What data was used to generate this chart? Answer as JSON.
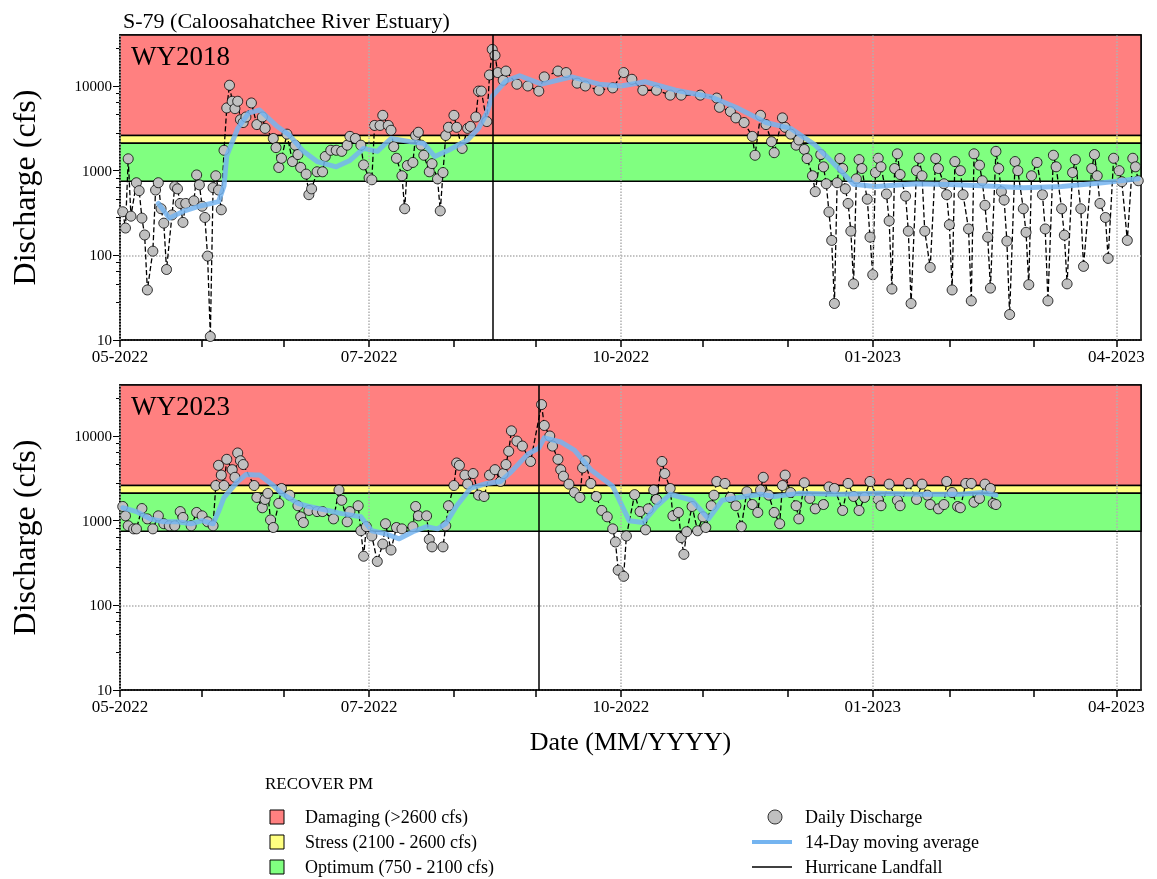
{
  "chart_data": [
    {
      "type": "line",
      "title": "S-79 (Caloosahatchee River Estuary)",
      "subtitle": "WY2018",
      "ylabel": "Discharge (cfs)",
      "log": true,
      "grid": true,
      "xlim": [
        "2022-05-01",
        "2023-05-09"
      ],
      "ylim": [
        10,
        40000
      ],
      "yticks": [
        10,
        100,
        1000,
        10000
      ],
      "xticks": [
        {
          "value": "2022-05-01",
          "label": "05-2022"
        },
        {
          "value": "2022-05-31",
          "label": null
        },
        {
          "value": "2022-06-30",
          "label": null
        },
        {
          "value": "2022-07-31",
          "label": "07-2022"
        },
        {
          "value": "2022-08-31",
          "label": null
        },
        {
          "value": "2022-09-30",
          "label": null
        },
        {
          "value": "2022-10-31",
          "label": "10-2022"
        },
        {
          "value": "2022-11-30",
          "label": null
        },
        {
          "value": "2022-12-31",
          "label": null
        },
        {
          "value": "2023-01-31",
          "label": "01-2023"
        },
        {
          "value": "2023-02-28",
          "label": null
        },
        {
          "value": "2023-03-31",
          "label": null
        },
        {
          "value": "2023-04-30",
          "label": "04-2023"
        }
      ],
      "bands": [
        {
          "axis": "y",
          "from": 2600,
          "to": 40000,
          "color": "#ff8080"
        },
        {
          "axis": "y",
          "from": 2100,
          "to": 2600,
          "color": "#ffff80"
        },
        {
          "axis": "y",
          "from": 750,
          "to": 2100,
          "color": "#80ff80"
        }
      ],
      "ref_lines": [
        {
          "axis": "x",
          "value": "2022-09-14",
          "color": "#000000"
        }
      ],
      "series": [
        {
          "color": "#c0c0c0",
          "marker": "circle",
          "line_style": "dashed",
          "x": [
            "2022-05-02",
            "2022-05-03",
            "2022-05-04",
            "2022-05-05",
            "2022-05-07",
            "2022-05-08",
            "2022-05-09",
            "2022-05-10",
            "2022-05-11",
            "2022-05-13",
            "2022-05-14",
            "2022-05-15",
            "2022-05-16",
            "2022-05-17",
            "2022-05-18",
            "2022-05-20",
            "2022-05-21",
            "2022-05-22",
            "2022-05-23",
            "2022-05-24",
            "2022-05-25",
            "2022-05-28",
            "2022-05-29",
            "2022-05-30",
            "2022-05-31",
            "2022-06-01",
            "2022-06-02",
            "2022-06-03",
            "2022-06-04",
            "2022-06-05",
            "2022-06-06",
            "2022-06-07",
            "2022-06-08",
            "2022-06-09",
            "2022-06-10",
            "2022-06-11",
            "2022-06-12",
            "2022-06-13",
            "2022-06-14",
            "2022-06-15",
            "2022-06-16",
            "2022-06-18",
            "2022-06-20",
            "2022-06-22",
            "2022-06-23",
            "2022-06-26",
            "2022-06-27",
            "2022-06-28",
            "2022-06-29",
            "2022-07-01",
            "2022-07-03",
            "2022-07-04",
            "2022-07-05",
            "2022-07-06",
            "2022-07-08",
            "2022-07-09",
            "2022-07-10",
            "2022-07-12",
            "2022-07-14",
            "2022-07-15",
            "2022-07-17",
            "2022-07-19",
            "2022-07-21",
            "2022-07-23",
            "2022-07-24",
            "2022-07-26",
            "2022-07-28",
            "2022-07-29",
            "2022-07-31",
            "2022-08-01",
            "2022-08-02",
            "2022-08-04",
            "2022-08-05",
            "2022-08-07",
            "2022-08-08",
            "2022-08-09",
            "2022-08-10",
            "2022-08-12",
            "2022-08-13",
            "2022-08-14",
            "2022-08-16",
            "2022-08-17",
            "2022-08-18",
            "2022-08-19",
            "2022-08-20",
            "2022-08-22",
            "2022-08-23",
            "2022-08-25",
            "2022-08-26",
            "2022-08-27",
            "2022-08-28",
            "2022-08-29",
            "2022-08-31",
            "2022-09-01",
            "2022-09-03",
            "2022-09-05",
            "2022-09-06",
            "2022-09-08",
            "2022-09-09",
            "2022-09-10",
            "2022-09-12",
            "2022-09-13",
            "2022-09-14",
            "2022-09-15",
            "2022-09-16",
            "2022-09-18",
            "2022-09-19",
            "2022-09-23",
            "2022-09-27",
            "2022-10-01",
            "2022-10-03",
            "2022-10-08",
            "2022-10-11",
            "2022-10-15",
            "2022-10-18",
            "2022-10-23",
            "2022-10-28",
            "2022-11-01",
            "2022-11-04",
            "2022-11-08",
            "2022-11-13",
            "2022-11-18",
            "2022-11-22",
            "2022-11-29",
            "2022-12-05",
            "2022-12-06",
            "2022-12-10",
            "2022-12-12",
            "2022-12-15",
            "2022-12-18",
            "2022-12-19",
            "2022-12-21",
            "2022-12-23",
            "2022-12-25",
            "2022-12-26",
            "2022-12-29",
            "2022-12-30",
            "2023-01-01",
            "2023-01-03",
            "2023-01-04",
            "2023-01-06",
            "2023-01-07",
            "2023-01-09",
            "2023-01-10",
            "2023-01-12",
            "2023-01-13",
            "2023-01-14",
            "2023-01-15",
            "2023-01-16",
            "2023-01-17",
            "2023-01-18",
            "2023-01-19",
            "2023-01-20",
            "2023-01-21",
            "2023-01-22",
            "2023-01-23",
            "2023-01-24",
            "2023-01-25",
            "2023-01-26",
            "2023-01-27",
            "2023-01-29",
            "2023-01-30",
            "2023-01-31",
            "2023-02-01",
            "2023-02-02",
            "2023-02-03",
            "2023-02-05",
            "2023-02-06",
            "2023-02-07",
            "2023-02-08",
            "2023-02-09",
            "2023-02-10",
            "2023-02-12",
            "2023-02-13",
            "2023-02-14",
            "2023-02-16",
            "2023-02-17",
            "2023-02-18",
            "2023-02-19",
            "2023-02-21",
            "2023-02-23",
            "2023-02-24",
            "2023-02-26",
            "2023-02-27",
            "2023-02-28",
            "2023-03-01",
            "2023-03-02",
            "2023-03-04",
            "2023-03-05",
            "2023-03-07",
            "2023-03-08",
            "2023-03-09",
            "2023-03-11",
            "2023-03-12",
            "2023-03-13",
            "2023-03-14",
            "2023-03-15",
            "2023-03-17",
            "2023-03-18",
            "2023-03-19",
            "2023-03-20",
            "2023-03-21",
            "2023-03-22",
            "2023-03-24",
            "2023-03-25",
            "2023-03-27",
            "2023-03-28",
            "2023-03-29",
            "2023-03-30",
            "2023-04-01",
            "2023-04-03",
            "2023-04-04",
            "2023-04-05",
            "2023-04-07",
            "2023-04-08",
            "2023-04-10",
            "2023-04-11",
            "2023-04-12",
            "2023-04-14",
            "2023-04-15",
            "2023-04-17",
            "2023-04-18",
            "2023-04-21",
            "2023-04-22",
            "2023-04-23",
            "2023-04-24",
            "2023-04-26",
            "2023-04-27",
            "2023-04-29",
            "2023-05-01",
            "2023-05-02",
            "2023-05-04",
            "2023-05-06",
            "2023-05-07",
            "2023-05-08"
          ],
          "values": [
            327,
            210,
            1380,
            290,
            720,
            580,
            275,
            174,
            39,
            112,
            590,
            720,
            355,
            240,
            68,
            300,
            650,
            610,
            410,
            245,
            410,
            440,
            890,
            680,
            380,
            280,
            98,
            11,
            630,
            870,
            590,
            345,
            1740,
            5500,
            10200,
            6600,
            5400,
            6600,
            4000,
            3700,
            4300,
            6300,
            3500,
            4300,
            3160,
            2400,
            1870,
            1090,
            1400,
            2700,
            1280,
            2000,
            1550,
            1090,
            910,
            520,
            610,
            970,
            970,
            1470,
            1740,
            1740,
            1690,
            2000,
            2540,
            2400,
            2000,
            1170,
            820,
            780,
            3420,
            3420,
            4500,
            3420,
            3000,
            1920,
            1400,
            870,
            355,
            1150,
            1250,
            2600,
            2840,
            2000,
            1520,
            970,
            1210,
            800,
            335,
            950,
            2600,
            3250,
            4500,
            3250,
            1830,
            3160,
            3330,
            4300,
            8700,
            8700,
            3800,
            13500,
            27000,
            23000,
            14400,
            11700,
            15000,
            10500,
            10000,
            8700,
            12800,
            15000,
            14400,
            10800,
            10000,
            8900,
            9500,
            14400,
            12000,
            8900,
            8900,
            7800,
            7800,
            7800,
            7200,
            5600,
            5000,
            4200,
            3700,
            2540,
            1520,
            4500,
            3500,
            2200,
            1630,
            4200,
            3250,
            2700,
            2000,
            2300,
            1780,
            1390,
            870,
            565,
            1550,
            1110,
            700,
            325,
            150,
            27,
            720,
            1390,
            1060,
            610,
            410,
            193,
            46,
            800,
            1350,
            1060,
            460,
            164,
            59,
            950,
            1400,
            1110,
            530,
            255,
            40,
            1060,
            1580,
            900,
            500,
            193,
            27,
            1000,
            1400,
            870,
            193,
            72,
            1390,
            1060,
            700,
            520,
            230,
            39,
            1280,
            1000,
            520,
            205,
            29,
            1580,
            1160,
            760,
            390,
            164,
            41,
            1690,
            1060,
            565,
            450,
            147,
            20,
            1280,
            1000,
            355,
            187,
            45,
            870,
            1250,
            520,
            205,
            29,
            1520,
            1110,
            355,
            173,
            46,
            950,
            1350,
            355,
            74,
            1060,
            1550,
            870,
            410,
            280,
            92,
            1400,
            1000,
            740,
            150,
            1400,
            1110,
            760
          ]
        },
        {
          "color": "#74b4f0",
          "marker": "none",
          "line_style": "solid",
          "x": [
            "2022-05-15",
            "2022-05-19",
            "2022-05-24",
            "2022-05-30",
            "2022-06-06",
            "2022-06-08",
            "2022-06-09",
            "2022-06-13",
            "2022-06-17",
            "2022-06-21",
            "2022-06-27",
            "2022-07-02",
            "2022-07-07",
            "2022-07-12",
            "2022-07-19",
            "2022-07-24",
            "2022-07-29",
            "2022-08-03",
            "2022-08-08",
            "2022-08-15",
            "2022-08-20",
            "2022-08-24",
            "2022-08-29",
            "2022-09-05",
            "2022-09-09",
            "2022-09-12",
            "2022-09-14",
            "2022-09-19",
            "2022-09-24",
            "2022-10-02",
            "2022-10-13",
            "2022-10-23",
            "2022-10-31",
            "2022-11-09",
            "2022-11-20",
            "2022-12-03",
            "2022-12-12",
            "2022-12-23",
            "2023-01-01",
            "2023-01-10",
            "2023-01-16",
            "2023-01-24",
            "2023-02-01",
            "2023-02-16",
            "2023-03-03",
            "2023-03-18",
            "2023-03-27",
            "2023-04-10",
            "2023-04-25",
            "2023-05-08"
          ],
          "values": [
            410,
            275,
            330,
            380,
            430,
            660,
            1500,
            3160,
            4800,
            5200,
            3420,
            2600,
            1690,
            1280,
            1110,
            1320,
            1830,
            1690,
            2400,
            2200,
            2100,
            1470,
            1740,
            2300,
            3160,
            4800,
            7600,
            11500,
            13200,
            10500,
            12800,
            10500,
            10000,
            11200,
            8900,
            7400,
            5600,
            3700,
            3160,
            2000,
            1280,
            690,
            650,
            700,
            680,
            650,
            630,
            650,
            720,
            800
          ]
        }
      ]
    },
    {
      "type": "line",
      "subtitle": "WY2023",
      "xlabel": "Date (MM/YYYY)",
      "ylabel": "Discharge (cfs)",
      "log": true,
      "grid": true,
      "legend": "bottom",
      "legend_title": "RECOVER PM",
      "xlim": [
        "2022-05-01",
        "2023-05-09"
      ],
      "ylim": [
        10,
        40000
      ],
      "yticks": [
        10,
        100,
        1000,
        10000
      ],
      "xticks": [
        {
          "value": "2022-05-01",
          "label": "05-2022"
        },
        {
          "value": "2022-05-31",
          "label": null
        },
        {
          "value": "2022-06-30",
          "label": null
        },
        {
          "value": "2022-07-31",
          "label": "07-2022"
        },
        {
          "value": "2022-08-31",
          "label": null
        },
        {
          "value": "2022-09-30",
          "label": null
        },
        {
          "value": "2022-10-31",
          "label": "10-2022"
        },
        {
          "value": "2022-11-30",
          "label": null
        },
        {
          "value": "2022-12-31",
          "label": null
        },
        {
          "value": "2023-01-31",
          "label": "01-2023"
        },
        {
          "value": "2023-02-28",
          "label": null
        },
        {
          "value": "2023-03-31",
          "label": null
        },
        {
          "value": "2023-04-30",
          "label": "04-2023"
        }
      ],
      "bands": [
        {
          "axis": "y",
          "from": 2600,
          "to": 40000,
          "color": "#ff8080",
          "label": "Damaging (>2600 cfs)"
        },
        {
          "axis": "y",
          "from": 2100,
          "to": 2600,
          "color": "#ffff80",
          "label": "Stress (2100 - 2600 cfs)"
        },
        {
          "axis": "y",
          "from": 750,
          "to": 2100,
          "color": "#80ff80",
          "label": "Optimum (750 - 2100 cfs)"
        }
      ],
      "ref_lines": [
        {
          "axis": "x",
          "value": "2022-10-01",
          "color": "#000000",
          "label": "Hurricane Landfall"
        }
      ],
      "series": [
        {
          "name": "Daily Discharge",
          "color": "#c0c0c0",
          "marker": "circle",
          "line_style": "dashed",
          "x": [
            "2022-05-02",
            "2022-05-03",
            "2022-05-04",
            "2022-05-06",
            "2022-05-07",
            "2022-05-09",
            "2022-05-11",
            "2022-05-13",
            "2022-05-15",
            "2022-05-17",
            "2022-05-19",
            "2022-05-21",
            "2022-05-23",
            "2022-05-24",
            "2022-05-27",
            "2022-05-29",
            "2022-05-31",
            "2022-06-02",
            "2022-06-04",
            "2022-06-05",
            "2022-06-06",
            "2022-06-07",
            "2022-06-08",
            "2022-06-09",
            "2022-06-11",
            "2022-06-12",
            "2022-06-13",
            "2022-06-14",
            "2022-06-15",
            "2022-06-19",
            "2022-06-20",
            "2022-06-22",
            "2022-06-23",
            "2022-06-24",
            "2022-06-25",
            "2022-06-26",
            "2022-06-28",
            "2022-06-29",
            "2022-07-02",
            "2022-07-05",
            "2022-07-06",
            "2022-07-07",
            "2022-07-09",
            "2022-07-12",
            "2022-07-14",
            "2022-07-18",
            "2022-07-20",
            "2022-07-21",
            "2022-07-23",
            "2022-07-24",
            "2022-07-27",
            "2022-07-28",
            "2022-07-29",
            "2022-07-30",
            "2022-08-01",
            "2022-08-03",
            "2022-08-05",
            "2022-08-06",
            "2022-08-08",
            "2022-08-10",
            "2022-08-12",
            "2022-08-16",
            "2022-08-17",
            "2022-08-18",
            "2022-08-21",
            "2022-08-22",
            "2022-08-23",
            "2022-08-27",
            "2022-08-28",
            "2022-08-29",
            "2022-08-31",
            "2022-09-01",
            "2022-09-02",
            "2022-09-04",
            "2022-09-05",
            "2022-09-07",
            "2022-09-09",
            "2022-09-11",
            "2022-09-13",
            "2022-09-15",
            "2022-09-17",
            "2022-09-18",
            "2022-09-19",
            "2022-09-20",
            "2022-09-21",
            "2022-09-23",
            "2022-09-25",
            "2022-09-28",
            "2022-10-02",
            "2022-10-03",
            "2022-10-05",
            "2022-10-06",
            "2022-10-08",
            "2022-10-09",
            "2022-10-10",
            "2022-10-12",
            "2022-10-14",
            "2022-10-16",
            "2022-10-17",
            "2022-10-18",
            "2022-10-20",
            "2022-10-22",
            "2022-10-24",
            "2022-10-26",
            "2022-10-28",
            "2022-10-29",
            "2022-10-30",
            "2022-11-01",
            "2022-11-02",
            "2022-11-05",
            "2022-11-07",
            "2022-11-09",
            "2022-11-10",
            "2022-11-12",
            "2022-11-13",
            "2022-11-15",
            "2022-11-16",
            "2022-11-18",
            "2022-11-19",
            "2022-11-21",
            "2022-11-22",
            "2022-11-23",
            "2022-11-24",
            "2022-11-26",
            "2022-11-28",
            "2022-11-30",
            "2022-12-01",
            "2022-12-03",
            "2022-12-04",
            "2022-12-05",
            "2022-12-08",
            "2022-12-10",
            "2022-12-12",
            "2022-12-14",
            "2022-12-16",
            "2022-12-18",
            "2022-12-20",
            "2022-12-21",
            "2022-12-22",
            "2022-12-24",
            "2022-12-26",
            "2022-12-28",
            "2022-12-29",
            "2022-12-30",
            "2023-01-01",
            "2023-01-03",
            "2023-01-04",
            "2023-01-06",
            "2023-01-08",
            "2023-01-10",
            "2023-01-13",
            "2023-01-15",
            "2023-01-17",
            "2023-01-20",
            "2023-01-22",
            "2023-01-24",
            "2023-01-26",
            "2023-01-28",
            "2023-01-30",
            "2023-02-02",
            "2023-02-03",
            "2023-02-06",
            "2023-02-09",
            "2023-02-10",
            "2023-02-13",
            "2023-02-16",
            "2023-02-18",
            "2023-02-20",
            "2023-02-21",
            "2023-02-24",
            "2023-02-26",
            "2023-02-27",
            "2023-03-01",
            "2023-03-03",
            "2023-03-04",
            "2023-03-06",
            "2023-03-08",
            "2023-03-09",
            "2023-03-11",
            "2023-03-13",
            "2023-03-15",
            "2023-03-16",
            "2023-03-17"
          ],
          "values": [
            1470,
            1140,
            870,
            800,
            800,
            1390,
            1050,
            800,
            1140,
            920,
            870,
            870,
            1280,
            1090,
            870,
            1250,
            1140,
            970,
            870,
            2600,
            4500,
            3450,
            2600,
            5300,
            4000,
            3250,
            6300,
            5100,
            4600,
            2600,
            1880,
            1420,
            1780,
            2100,
            1020,
            830,
            1600,
            2400,
            2000,
            1500,
            1110,
            950,
            1320,
            1280,
            1280,
            1050,
            2300,
            1740,
            970,
            1280,
            1500,
            760,
            380,
            850,
            660,
            330,
            530,
            920,
            450,
            830,
            800,
            850,
            1470,
            1140,
            1140,
            600,
            490,
            490,
            870,
            1500,
            2600,
            4800,
            4500,
            3450,
            2700,
            3600,
            2000,
            1930,
            3450,
            4000,
            2900,
            3600,
            4600,
            6600,
            11500,
            8700,
            7600,
            5000,
            23500,
            13300,
            10000,
            7600,
            5300,
            4000,
            3350,
            2700,
            2150,
            1880,
            4200,
            5100,
            2750,
            1930,
            1320,
            1110,
            800,
            560,
            260,
            220,
            660,
            2030,
            1280,
            780,
            1380,
            2300,
            1780,
            5000,
            3600,
            2400,
            1140,
            1250,
            630,
            400,
            740,
            1470,
            760,
            1110,
            830,
            1500,
            2000,
            2900,
            2750,
            1880,
            1500,
            850,
            2200,
            1550,
            1250,
            2300,
            3250,
            2000,
            1250,
            920,
            2600,
            3450,
            2150,
            1500,
            1050,
            2800,
            1830,
            1380,
            1550,
            2500,
            2400,
            1320,
            2750,
            1930,
            1320,
            1880,
            2900,
            1780,
            1500,
            2700,
            1740,
            1500,
            2750,
            1780,
            2700,
            2000,
            1550,
            1380,
            1550,
            2900,
            2150,
            1470,
            1420,
            2750,
            2750,
            1650,
            1830,
            2700,
            2400,
            1600,
            1550
          ]
        },
        {
          "name": "14-Day moving average",
          "color": "#74b4f0",
          "marker": "none",
          "line_style": "solid",
          "x": [
            "2022-05-02",
            "2022-05-07",
            "2022-05-12",
            "2022-05-17",
            "2022-05-22",
            "2022-05-27",
            "2022-05-31",
            "2022-06-04",
            "2022-06-06",
            "2022-06-08",
            "2022-06-13",
            "2022-06-16",
            "2022-06-21",
            "2022-06-26",
            "2022-06-29",
            "2022-07-05",
            "2022-07-09",
            "2022-07-16",
            "2022-07-21",
            "2022-07-28",
            "2022-08-01",
            "2022-08-06",
            "2022-08-11",
            "2022-08-16",
            "2022-08-21",
            "2022-08-25",
            "2022-08-28",
            "2022-09-01",
            "2022-09-06",
            "2022-09-12",
            "2022-09-17",
            "2022-09-21",
            "2022-09-27",
            "2022-10-01",
            "2022-10-03",
            "2022-10-09",
            "2022-10-14",
            "2022-10-20",
            "2022-10-28",
            "2022-11-03",
            "2022-11-08",
            "2022-11-13",
            "2022-11-18",
            "2022-11-26",
            "2022-12-02",
            "2022-12-07",
            "2022-12-13",
            "2022-12-21",
            "2022-12-26",
            "2023-01-04",
            "2023-01-19",
            "2023-02-02",
            "2023-02-17",
            "2023-03-04",
            "2023-03-12",
            "2023-03-17"
          ],
          "values": [
            1420,
            1280,
            1050,
            970,
            970,
            920,
            1000,
            920,
            1280,
            1880,
            2900,
            3500,
            3450,
            2600,
            2100,
            1600,
            1470,
            1320,
            1210,
            1110,
            760,
            700,
            610,
            740,
            850,
            800,
            920,
            1500,
            2400,
            2750,
            2900,
            3800,
            6100,
            7200,
            9500,
            8500,
            6800,
            4000,
            2550,
            1000,
            950,
            1470,
            2050,
            1740,
            1050,
            1740,
            1880,
            2050,
            1930,
            2100,
            2050,
            2100,
            2050,
            2050,
            2150,
            2000
          ]
        }
      ]
    }
  ]
}
